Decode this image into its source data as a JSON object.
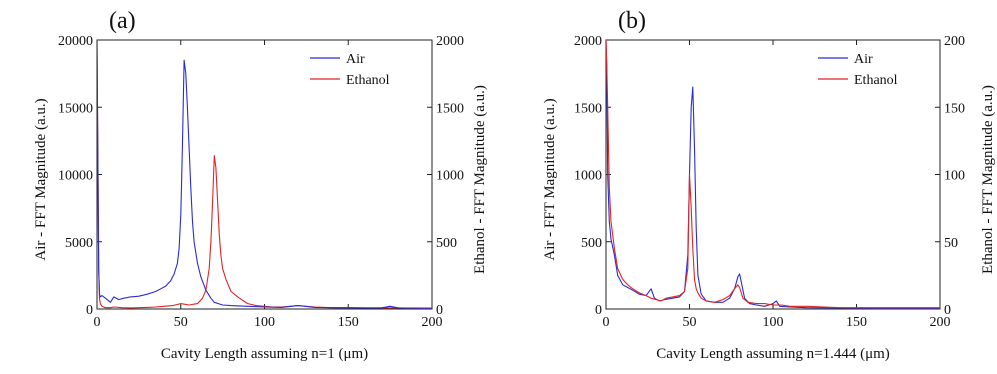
{
  "chart_data": [
    {
      "type": "line",
      "panel_label": "(a)",
      "xlabel": "Cavity Length assuming n=1 (μm)",
      "ylabel_left": "Air - FFT Magnitude (a.u.)",
      "ylabel_right": "Ethanol - FFT Magnitude (a.u.)",
      "xlim": [
        0,
        200
      ],
      "ylim_left": [
        0,
        20000
      ],
      "ylim_right": [
        0,
        2000
      ],
      "x_ticks": [
        "0",
        "50",
        "100",
        "150",
        "200"
      ],
      "y_ticks_left": [
        "0",
        "5000",
        "10000",
        "15000",
        "20000"
      ],
      "y_ticks_right": [
        "0",
        "500",
        "1000",
        "1500",
        "2000"
      ],
      "legend_position": "top-right",
      "grid": false,
      "series": [
        {
          "name": "Air",
          "axis": "left",
          "color": "#2b2bd6",
          "x": [
            0,
            0.5,
            1,
            1.5,
            2,
            3,
            5,
            8,
            10,
            13,
            16,
            20,
            25,
            30,
            35,
            38,
            41,
            44,
            46,
            48,
            49,
            50,
            51,
            52,
            53,
            54,
            55,
            56,
            57,
            58,
            60,
            62,
            65,
            68,
            70,
            75,
            80,
            90,
            100,
            110,
            120,
            130,
            140,
            150,
            160,
            170,
            175,
            180,
            190,
            200
          ],
          "y": [
            20000,
            12000,
            3000,
            1100,
            900,
            1000,
            800,
            500,
            900,
            700,
            800,
            900,
            950,
            1100,
            1300,
            1500,
            1700,
            2100,
            2600,
            3400,
            4500,
            7000,
            12000,
            18500,
            17500,
            15000,
            12000,
            9000,
            6500,
            5000,
            3400,
            2400,
            1400,
            800,
            500,
            300,
            250,
            200,
            150,
            120,
            250,
            120,
            100,
            90,
            80,
            90,
            200,
            80,
            70,
            60
          ]
        },
        {
          "name": "Ethanol",
          "axis": "right",
          "color": "#e02424",
          "x": [
            0,
            0.5,
            1,
            1.5,
            2,
            3,
            5,
            8,
            10,
            15,
            20,
            25,
            30,
            35,
            40,
            45,
            50,
            55,
            60,
            63,
            65,
            67,
            68,
            69,
            70,
            71,
            72,
            73,
            74,
            75,
            77,
            80,
            85,
            90,
            95,
            100,
            105,
            110,
            120,
            130,
            140,
            150,
            160,
            170,
            180,
            190,
            200
          ],
          "y": [
            2000,
            1200,
            300,
            80,
            40,
            20,
            10,
            10,
            15,
            10,
            8,
            10,
            12,
            15,
            20,
            25,
            40,
            30,
            40,
            80,
            140,
            300,
            500,
            800,
            1140,
            1050,
            800,
            550,
            400,
            300,
            220,
            130,
            80,
            40,
            25,
            20,
            15,
            15,
            25,
            15,
            10,
            10,
            8,
            8,
            8,
            6,
            5
          ]
        }
      ]
    },
    {
      "type": "line",
      "panel_label": "(b)",
      "xlabel": "Cavity Length assuming n=1.444 (μm)",
      "ylabel_left": "Air - FFT Magnitude (a.u.)",
      "ylabel_right": "Ethanol - FFT Magnitude (a.u.)",
      "xlim": [
        0,
        200
      ],
      "ylim_left": [
        0,
        2000
      ],
      "ylim_right": [
        0,
        200
      ],
      "x_ticks": [
        "0",
        "50",
        "100",
        "150",
        "200"
      ],
      "y_ticks_left": [
        "0",
        "500",
        "1000",
        "1500",
        "2000"
      ],
      "y_ticks_right": [
        "0",
        "50",
        "100",
        "150",
        "200"
      ],
      "legend_position": "top-right",
      "grid": false,
      "series": [
        {
          "name": "Air",
          "axis": "left",
          "color": "#2b2bd6",
          "x": [
            0,
            0.5,
            1,
            2,
            3,
            5,
            7,
            10,
            13,
            16,
            20,
            24,
            27,
            29,
            32,
            35,
            40,
            44,
            47,
            49,
            50,
            51,
            52,
            53,
            54,
            55,
            57,
            60,
            65,
            70,
            74,
            77,
            79,
            80,
            81,
            83,
            86,
            90,
            95,
            100,
            102,
            104,
            110,
            120,
            140,
            160,
            180,
            200
          ],
          "y": [
            2000,
            1800,
            1000,
            650,
            520,
            400,
            250,
            180,
            160,
            140,
            110,
            100,
            150,
            80,
            60,
            70,
            80,
            90,
            130,
            400,
            1000,
            1500,
            1650,
            1200,
            600,
            250,
            110,
            60,
            50,
            50,
            80,
            150,
            240,
            260,
            200,
            80,
            40,
            30,
            20,
            40,
            60,
            20,
            15,
            10,
            8,
            5,
            5,
            5
          ]
        },
        {
          "name": "Ethanol",
          "axis": "right",
          "color": "#e02424",
          "x": [
            0,
            0.5,
            1,
            2,
            3,
            5,
            7,
            10,
            13,
            16,
            20,
            24,
            27,
            30,
            33,
            36,
            40,
            44,
            47,
            49,
            50,
            51,
            52,
            53,
            54,
            55,
            57,
            60,
            65,
            70,
            74,
            77,
            79,
            80,
            82,
            85,
            90,
            95,
            100,
            105,
            110,
            120,
            140,
            160,
            180,
            200
          ],
          "y": [
            200,
            180,
            150,
            90,
            65,
            45,
            30,
            22,
            18,
            15,
            12,
            10,
            8,
            7,
            6,
            8,
            9,
            10,
            13,
            30,
            100,
            75,
            45,
            22,
            15,
            12,
            8,
            6,
            5,
            7,
            10,
            15,
            18,
            16,
            8,
            5,
            4,
            4,
            3,
            3,
            2,
            2,
            1,
            1,
            1,
            1
          ]
        }
      ]
    }
  ]
}
